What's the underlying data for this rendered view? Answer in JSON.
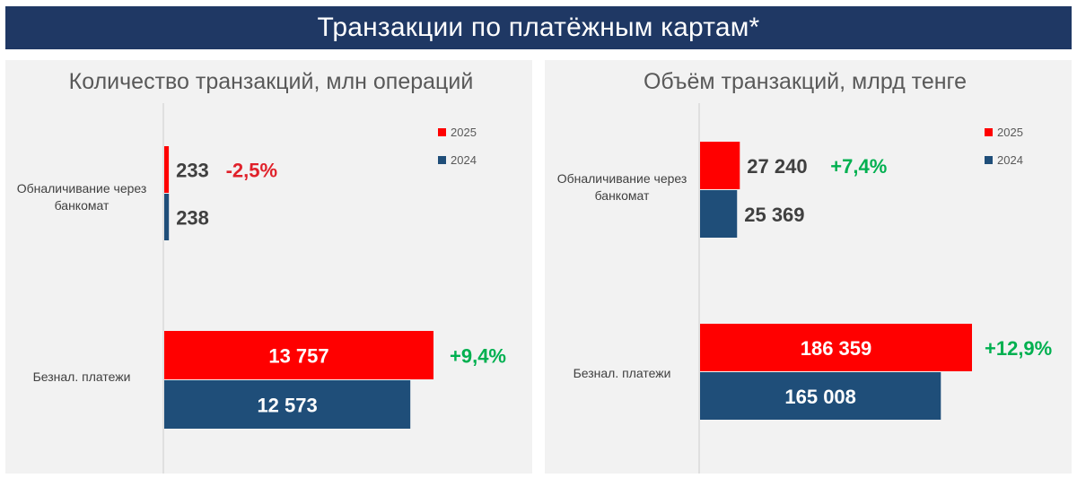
{
  "header": {
    "title": "Транзакции по платёжным картам*"
  },
  "colors": {
    "banner": "#1f3864",
    "series_2025": "#ff0000",
    "series_2024": "#1f4e79",
    "negative": "#e0212a",
    "positive": "#00b050",
    "panel_bg": "#f2f2f2"
  },
  "chart_data": [
    {
      "type": "bar",
      "orientation": "horizontal",
      "title": "Количество транзакций, млн операций",
      "categories": [
        "Обналичивание через банкомат",
        "Безнал. платежи"
      ],
      "series": [
        {
          "name": "2025",
          "values": [
            233,
            13757
          ],
          "value_labels": [
            "233",
            "13 757"
          ]
        },
        {
          "name": "2024",
          "values": [
            238,
            12573
          ],
          "value_labels": [
            "238",
            "12 573"
          ]
        }
      ],
      "annotations": [
        "-2,5%",
        "+9,4%"
      ],
      "legend_position": "top-right",
      "grid": false
    },
    {
      "type": "bar",
      "orientation": "horizontal",
      "title": "Объём транзакций, млрд тенге",
      "categories": [
        "Обналичивание через банкомат",
        "Безнал. платежи"
      ],
      "series": [
        {
          "name": "2025",
          "values": [
            27240,
            186359
          ],
          "value_labels": [
            "27 240",
            "186 359"
          ]
        },
        {
          "name": "2024",
          "values": [
            25369,
            165008
          ],
          "value_labels": [
            "25 369",
            "165 008"
          ]
        }
      ],
      "annotations": [
        "+7,4%",
        "+12,9%"
      ],
      "legend_position": "top-right",
      "grid": false
    }
  ]
}
